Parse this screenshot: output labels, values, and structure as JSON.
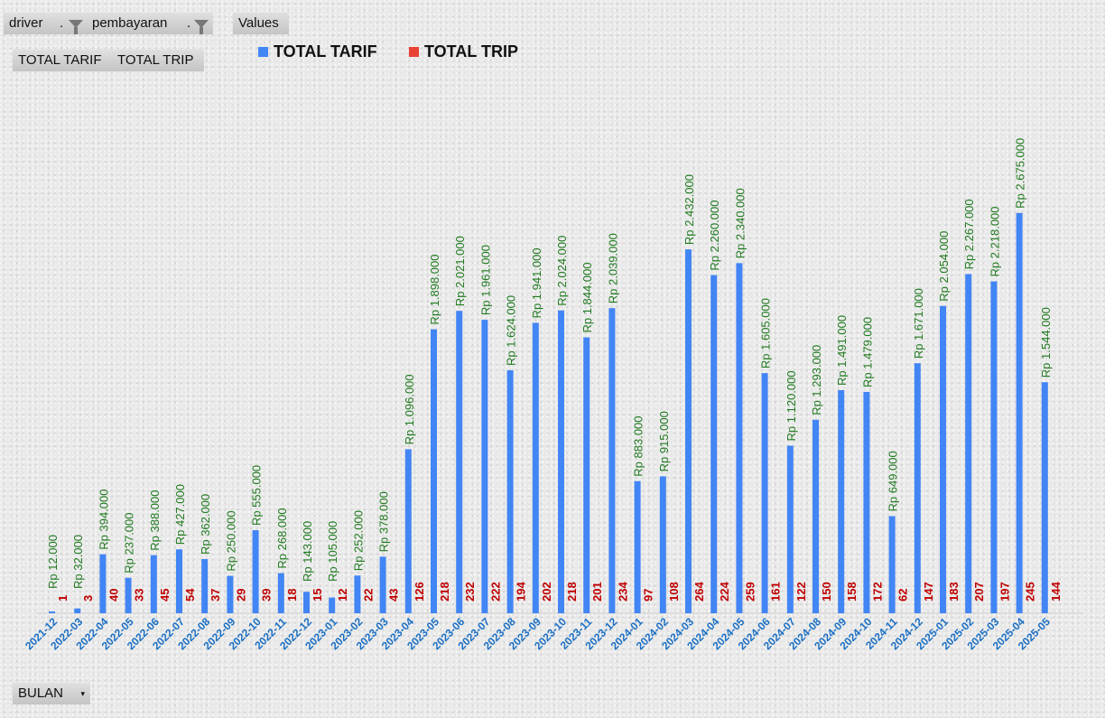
{
  "filters": {
    "driver_label": "driver",
    "pembayaran_label": "pembayaran",
    "values_label": "Values",
    "filter_dot": "."
  },
  "value_fields": [
    "TOTAL TARIF",
    "TOTAL TRIP"
  ],
  "axis_field": {
    "label": "BULAN",
    "arrow": "▾"
  },
  "colors": {
    "tarif": "#4285f4",
    "trip": "#ea4335",
    "tarif_label": "#1f7a1f",
    "trip_label": "#c00000",
    "x_label": "#1a6fc4"
  },
  "chart_data": {
    "type": "bar",
    "title": "",
    "xlabel": "BULAN",
    "ylabel": "",
    "ylim": [
      0,
      3000000
    ],
    "grid": false,
    "legend_position": "top",
    "categories": [
      "2021-12",
      "2022-03",
      "2022-04",
      "2022-05",
      "2022-06",
      "2022-07",
      "2022-08",
      "2022-09",
      "2022-10",
      "2022-11",
      "2022-12",
      "2023-01",
      "2023-02",
      "2023-03",
      "2023-04",
      "2023-05",
      "2023-06",
      "2023-07",
      "2023-08",
      "2023-09",
      "2023-10",
      "2023-11",
      "2023-12",
      "2024-01",
      "2024-02",
      "2024-03",
      "2024-04",
      "2024-05",
      "2024-06",
      "2024-07",
      "2024-08",
      "2024-09",
      "2024-10",
      "2024-11",
      "2024-12",
      "2025-01",
      "2025-02",
      "2025-03",
      "2025-04",
      "2025-05"
    ],
    "series": [
      {
        "name": "TOTAL TARIF",
        "values": [
          12000,
          32000,
          394000,
          237000,
          388000,
          427000,
          362000,
          250000,
          555000,
          268000,
          143000,
          105000,
          252000,
          378000,
          1096000,
          1898000,
          2021000,
          1961000,
          1624000,
          1941000,
          2024000,
          1844000,
          2039000,
          883000,
          915000,
          2432000,
          2260000,
          2340000,
          1605000,
          1120000,
          1293000,
          1491000,
          1479000,
          649000,
          1671000,
          2054000,
          2267000,
          2218000,
          2675000,
          1544000
        ],
        "labels": [
          "Rp 12.000",
          "Rp 32.000",
          "Rp 394.000",
          "Rp 237.000",
          "Rp 388.000",
          "Rp 427.000",
          "Rp 362.000",
          "Rp 250.000",
          "Rp 555.000",
          "Rp 268.000",
          "Rp 143.000",
          "Rp 105.000",
          "Rp 252.000",
          "Rp 378.000",
          "Rp 1.096.000",
          "Rp 1.898.000",
          "Rp 2.021.000",
          "Rp 1.961.000",
          "Rp 1.624.000",
          "Rp 1.941.000",
          "Rp 2.024.000",
          "Rp 1.844.000",
          "Rp 2.039.000",
          "Rp 883.000",
          "Rp 915.000",
          "Rp 2.432.000",
          "Rp 2.260.000",
          "Rp 2.340.000",
          "Rp 1.605.000",
          "Rp 1.120.000",
          "Rp 1.293.000",
          "Rp 1.491.000",
          "Rp 1.479.000",
          "Rp 649.000",
          "Rp 1.671.000",
          "Rp 2.054.000",
          "Rp 2.267.000",
          "Rp 2.218.000",
          "Rp 2.675.000",
          "Rp 1.544.000"
        ]
      },
      {
        "name": "TOTAL TRIP",
        "values": [
          1,
          3,
          40,
          33,
          45,
          54,
          37,
          29,
          39,
          18,
          15,
          12,
          22,
          43,
          126,
          218,
          232,
          222,
          194,
          202,
          218,
          201,
          234,
          97,
          108,
          264,
          224,
          259,
          161,
          122,
          150,
          158,
          172,
          62,
          147,
          183,
          207,
          197,
          245,
          144
        ]
      }
    ]
  }
}
